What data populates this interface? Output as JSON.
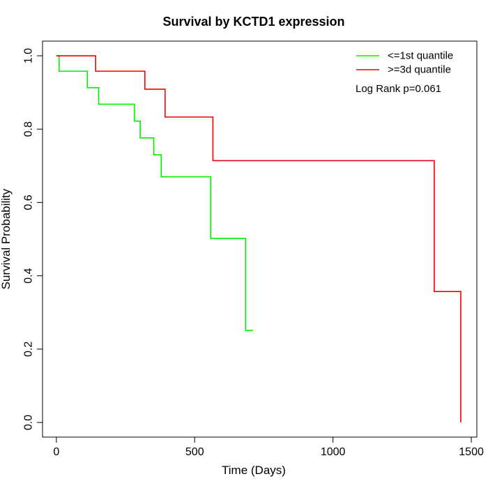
{
  "chart_data": {
    "type": "line",
    "title": "Survival by KCTD1 expression",
    "xlabel": "Time (Days)",
    "ylabel": "Survival Probability",
    "xlim": [
      -50,
      1520
    ],
    "ylim": [
      -0.04,
      1.04
    ],
    "x_ticks": [
      0,
      500,
      1000,
      1500
    ],
    "y_ticks": [
      0.0,
      0.2,
      0.4,
      0.6,
      0.8,
      1.0
    ],
    "x_tick_labels": [
      "0",
      "500",
      "1000",
      "1500"
    ],
    "y_tick_labels": [
      "0.0",
      "0.2",
      "0.4",
      "0.6",
      "0.8",
      "1.0"
    ],
    "grid": false,
    "legend_position": "top-right",
    "annotation": "Log Rank p=0.061",
    "series": [
      {
        "name": "<=1st quantile",
        "color": "#00ee00",
        "step": true,
        "x": [
          0,
          10,
          112,
          153,
          282,
          303,
          352,
          379,
          558,
          684,
          711
        ],
        "y": [
          1.0,
          0.958,
          0.913,
          0.868,
          0.822,
          0.776,
          0.73,
          0.67,
          0.502,
          0.251,
          0.251
        ]
      },
      {
        "name": ">=3d quantile",
        "color": "#ee0000",
        "step": true,
        "x": [
          0,
          142,
          320,
          393,
          566,
          1366,
          1462,
          1462
        ],
        "y": [
          1.0,
          0.958,
          0.909,
          0.833,
          0.714,
          0.357,
          0.357,
          0.0
        ]
      }
    ]
  }
}
